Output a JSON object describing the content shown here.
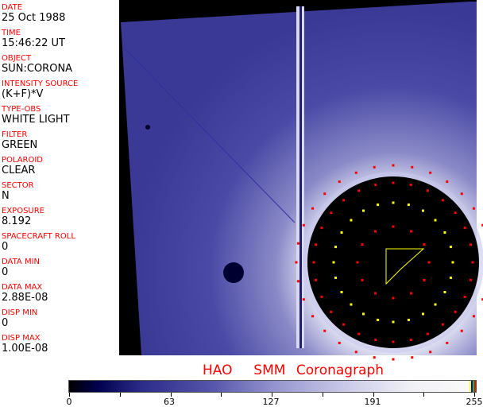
{
  "header_fields": [
    {
      "label": "DATE",
      "value": "25 Oct 1988"
    },
    {
      "label": "TIME",
      "value": "15:46:22 UT"
    },
    {
      "label": "OBJECT",
      "value": "SUN:CORONA"
    },
    {
      "label": "INTENSITY SOURCE",
      "value": "(K+F)*V"
    },
    {
      "label": "TYPE-OBS",
      "value": "WHITE LIGHT"
    },
    {
      "label": "FILTER",
      "value": "GREEN"
    },
    {
      "label": "POLAROID",
      "value": "CLEAR"
    },
    {
      "label": "SECTOR",
      "value": "N"
    },
    {
      "label": "EXPOSURE",
      "value": "8.192"
    },
    {
      "label": "SPACECRAFT ROLL",
      "value": "0"
    },
    {
      "label": "DATA MIN",
      "value": "0"
    },
    {
      "label": "DATA MAX",
      "value": "2.88E-08"
    },
    {
      "label": "DISP MIN",
      "value": "0"
    },
    {
      "label": "DISP MAX",
      "value": "1.00E-08"
    }
  ],
  "title": "HAO  SMM Coronagraph",
  "colorbar": {
    "ticks": [
      "0",
      "63",
      "127",
      "191",
      "255"
    ],
    "min": 0,
    "max": 255
  },
  "colors": {
    "label": "#ff0000",
    "background": "#000000",
    "accent": "#5555aa"
  }
}
